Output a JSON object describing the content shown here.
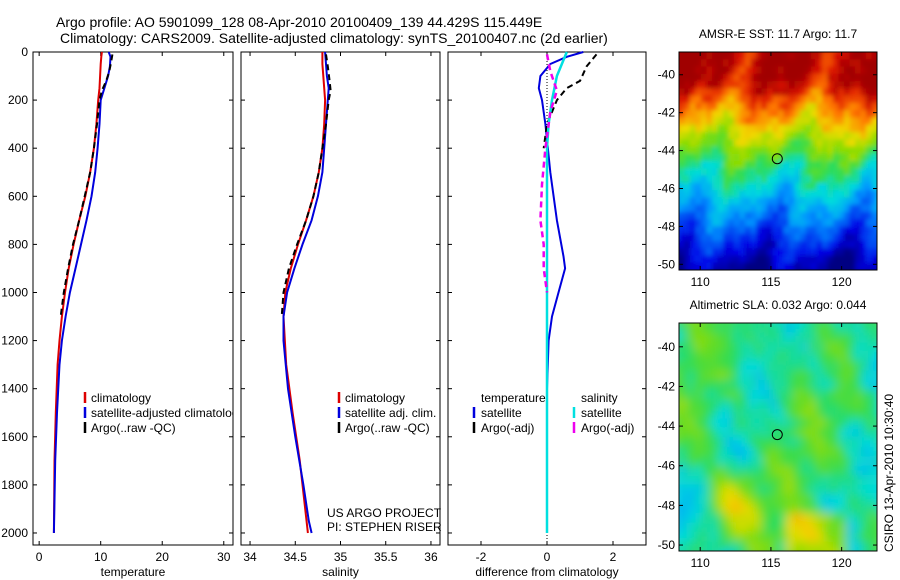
{
  "header": {
    "line1": "Argo profile: AO 5901099_128 08-Apr-2010 20100409_139 44.429S 115.449E",
    "line2": "Climatology: CARS2009. Satellite-adjusted climatology: synTS_20100407.nc (2d earlier)"
  },
  "colors": {
    "climatology": "#dd0000",
    "satellite": "#0000dd",
    "argo": "#000000",
    "salinity_satellite": "#00e0e0",
    "salinity_argo": "#ee00ee"
  },
  "credits": {
    "project": "US ARGO PROJECT",
    "pi": "PI: STEPHEN RISER",
    "footer": "CSIRO 13-Apr-2010 10:30:40"
  },
  "chart_data": [
    {
      "type": "line",
      "id": "temperature",
      "xlabel": "temperature",
      "ylabel": "",
      "xlim": [
        -1,
        31.5
      ],
      "ylim": [
        2050,
        0
      ],
      "xticks": [
        0,
        10,
        20,
        30
      ],
      "xtick_labels": [
        "0",
        "10",
        "20",
        "30"
      ],
      "yticks": [
        0,
        200,
        400,
        600,
        800,
        1000,
        1200,
        1400,
        1600,
        1800,
        2000
      ],
      "ytick_labels": [
        "0",
        "200",
        "400",
        "600",
        "800",
        "1000",
        "1200",
        "1400",
        "1600",
        "1800",
        "2000"
      ],
      "legend": [
        "climatology",
        "satellite-adjusted climatology",
        "Argo(..raw -QC)"
      ],
      "series": [
        {
          "name": "climatology",
          "style": "solid",
          "x": [
            10.2,
            10.1,
            10.0,
            9.9,
            9.8,
            9.6,
            9.3,
            8.9,
            8.3,
            7.5,
            6.5,
            5.6,
            4.8,
            4.2,
            3.7,
            3.3,
            3.0,
            2.7,
            2.5,
            2.4
          ],
          "y": [
            0,
            20,
            50,
            100,
            150,
            200,
            300,
            400,
            500,
            600,
            700,
            800,
            900,
            1000,
            1100,
            1200,
            1300,
            1500,
            1700,
            2000
          ]
        },
        {
          "name": "satellite-adjusted climatology",
          "style": "solid",
          "x": [
            11.3,
            11.6,
            11.5,
            11.2,
            10.6,
            10.0,
            9.8,
            9.5,
            9.1,
            8.5,
            7.7,
            6.8,
            5.9,
            5.0,
            4.3,
            3.7,
            3.3,
            2.9,
            2.6,
            2.4
          ],
          "y": [
            0,
            20,
            60,
            100,
            150,
            200,
            300,
            400,
            500,
            600,
            700,
            800,
            900,
            1000,
            1100,
            1200,
            1300,
            1500,
            1700,
            2000
          ]
        },
        {
          "name": "Argo(..raw -QC)",
          "style": "dashed",
          "x": [
            11.9,
            11.7,
            11.4,
            10.9,
            10.2,
            9.8,
            9.4,
            8.9,
            8.3,
            7.4,
            6.5,
            5.5,
            4.7,
            4.0,
            3.5
          ],
          "y": [
            10,
            40,
            80,
            120,
            160,
            200,
            300,
            400,
            500,
            600,
            700,
            800,
            900,
            1000,
            1100
          ]
        }
      ]
    },
    {
      "type": "line",
      "id": "salinity",
      "xlabel": "salinity",
      "ylabel": "",
      "xlim": [
        33.9,
        36.1
      ],
      "ylim": [
        2050,
        0
      ],
      "xticks": [
        34,
        34.5,
        35,
        35.5,
        36
      ],
      "xtick_labels": [
        "34",
        "34.5",
        "35",
        "35.5",
        "36"
      ],
      "yticks": [
        0,
        200,
        400,
        600,
        800,
        1000,
        1200,
        1400,
        1600,
        1800,
        2000
      ],
      "ytick_labels": [],
      "legend": [
        "climatology",
        "satellite adj. clim.",
        "Argo(..raw -QC)"
      ],
      "series": [
        {
          "name": "climatology",
          "style": "solid",
          "x": [
            34.8,
            34.8,
            34.81,
            34.82,
            34.83,
            34.82,
            34.8,
            34.76,
            34.7,
            34.62,
            34.53,
            34.45,
            34.39,
            34.37,
            34.4,
            34.47,
            34.55,
            34.61,
            34.64
          ],
          "y": [
            0,
            50,
            100,
            150,
            200,
            300,
            400,
            500,
            600,
            700,
            800,
            900,
            1000,
            1100,
            1300,
            1500,
            1700,
            1900,
            2000
          ]
        },
        {
          "name": "satellite adj. clim.",
          "style": "solid",
          "x": [
            34.83,
            34.84,
            34.85,
            34.87,
            34.86,
            34.84,
            34.82,
            34.8,
            34.75,
            34.68,
            34.58,
            34.49,
            34.41,
            34.37,
            34.37,
            34.42,
            34.5,
            34.59,
            34.65,
            34.68
          ],
          "y": [
            0,
            50,
            100,
            150,
            200,
            300,
            400,
            500,
            600,
            700,
            800,
            900,
            1000,
            1100,
            1200,
            1400,
            1600,
            1800,
            1950,
            2000
          ]
        },
        {
          "name": "Argo(..raw -QC)",
          "style": "dashed",
          "x": [
            34.84,
            34.86,
            34.88,
            34.89,
            34.87,
            34.84,
            34.8,
            34.76,
            34.7,
            34.62,
            34.52,
            34.43,
            34.37,
            34.35
          ],
          "y": [
            10,
            60,
            120,
            160,
            200,
            300,
            400,
            500,
            600,
            700,
            800,
            900,
            1000,
            1100
          ]
        }
      ]
    },
    {
      "type": "line",
      "id": "difference",
      "xlabel": "difference from climatology",
      "ylabel": "",
      "xlim": [
        -3,
        3
      ],
      "ylim": [
        2050,
        0
      ],
      "xticks": [
        -2,
        0,
        2
      ],
      "xtick_labels": [
        "-2",
        "0",
        "2"
      ],
      "yticks": [
        0,
        200,
        400,
        600,
        800,
        1000,
        1200,
        1400,
        1600,
        1800,
        2000
      ],
      "ytick_labels": [],
      "legend_headers": [
        "temperature",
        "salinity"
      ],
      "legend": [
        "satellite",
        "Argo(-adj)",
        "satellite",
        "Argo(-adj)"
      ],
      "series": [
        {
          "name": "temperature satellite",
          "style": "solid",
          "x": [
            1.1,
            0.6,
            0.1,
            -0.2,
            -0.25,
            -0.15,
            -0.05,
            0.1,
            0.3,
            0.5,
            0.55,
            0.35,
            0.15,
            0.05,
            0.0,
            0.0,
            0.0
          ],
          "y": [
            0,
            20,
            50,
            100,
            150,
            200,
            300,
            500,
            700,
            850,
            900,
            1000,
            1100,
            1200,
            1400,
            1700,
            2000
          ]
        },
        {
          "name": "temperature Argo(-adj)",
          "style": "dashed",
          "x": [
            1.5,
            1.2,
            1.0,
            0.6,
            0.3,
            0.0,
            -0.1
          ],
          "y": [
            10,
            60,
            120,
            150,
            200,
            300,
            400
          ]
        },
        {
          "name": "salinity satellite",
          "style": "solid",
          "x": [
            0.6,
            0.3,
            0.15,
            0.05,
            0.0,
            0.0,
            0.0,
            0.0,
            0.0
          ],
          "y": [
            0,
            100,
            200,
            300,
            400,
            600,
            1000,
            1500,
            2000
          ]
        },
        {
          "name": "salinity Argo(-adj)",
          "style": "dashed",
          "x": [
            0.0,
            0.1,
            0.3,
            0.1,
            -0.05,
            -0.15,
            -0.2,
            -0.1,
            -0.1,
            0.0
          ],
          "y": [
            10,
            80,
            160,
            250,
            400,
            550,
            700,
            800,
            900,
            1000
          ]
        }
      ]
    },
    {
      "type": "heatmap",
      "id": "sst_map",
      "title": "AMSR-E SST: 11.7 Argo: 11.7",
      "xlim": [
        108.5,
        122.5
      ],
      "ylim": [
        -50.3,
        -38.8
      ],
      "xticks": [
        110,
        115,
        120
      ],
      "xtick_labels": [
        "110",
        "115",
        "120"
      ],
      "yticks": [
        -40,
        -42,
        -44,
        -46,
        -48,
        -50
      ],
      "ytick_labels": [
        "-40",
        "-42",
        "-44",
        "-46",
        "-48",
        "-50"
      ],
      "marker": {
        "lon": 115.45,
        "lat": -44.43
      }
    },
    {
      "type": "heatmap",
      "id": "sla_map",
      "title": "Altimetric SLA: 0.032 Argo: 0.044",
      "xlim": [
        108.5,
        122.5
      ],
      "ylim": [
        -50.3,
        -38.8
      ],
      "xticks": [
        110,
        115,
        120
      ],
      "xtick_labels": [
        "110",
        "115",
        "120"
      ],
      "yticks": [
        -40,
        -42,
        -44,
        -46,
        -48,
        -50
      ],
      "ytick_labels": [
        "-40",
        "-42",
        "-44",
        "-46",
        "-48",
        "-50"
      ],
      "marker": {
        "lon": 115.45,
        "lat": -44.43
      }
    }
  ]
}
